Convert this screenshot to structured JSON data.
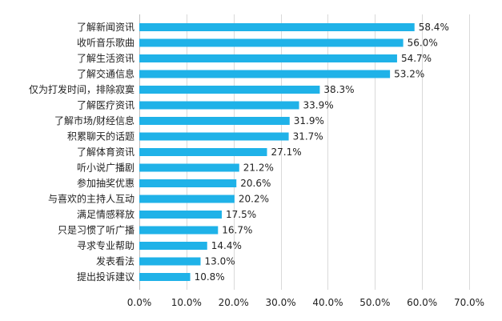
{
  "chart_data": {
    "type": "bar",
    "orientation": "horizontal",
    "categories": [
      "了解新闻资讯",
      "收听音乐歌曲",
      "了解生活资讯",
      "了解交通信息",
      "仅为打发时间，排除寂寞",
      "了解医疗资讯",
      "了解市场/财经信息",
      "积累聊天的话题",
      "了解体育资讯",
      "听小说广播剧",
      "参加抽奖优惠",
      "与喜欢的主持人互动",
      "满足情感释放",
      "只是习惯了听广播",
      "寻求专业帮助",
      "发表看法",
      "提出投诉建议"
    ],
    "values": [
      58.4,
      56.0,
      54.7,
      53.2,
      38.3,
      33.9,
      31.9,
      31.7,
      27.1,
      21.2,
      20.6,
      20.2,
      17.5,
      16.7,
      14.4,
      13.0,
      10.8
    ],
    "value_labels": [
      "58.4%",
      "56.0%",
      "54.7%",
      "53.2%",
      "38.3%",
      "33.9%",
      "31.9%",
      "31.7%",
      "27.1%",
      "21.2%",
      "20.6%",
      "20.2%",
      "17.5%",
      "16.7%",
      "14.4%",
      "13.0%",
      "10.8%"
    ],
    "xticks": [
      0,
      10,
      20,
      30,
      40,
      50,
      60,
      70
    ],
    "xtick_labels": [
      "0.0%",
      "10.0%",
      "20.0%",
      "30.0%",
      "40.0%",
      "50.0%",
      "60.0%",
      "70.0%"
    ],
    "xlim": [
      0,
      70
    ],
    "title": "",
    "xlabel": "",
    "ylabel": "",
    "grid": "vertical",
    "legend": "none",
    "bar_color": "#1fb2e8"
  }
}
